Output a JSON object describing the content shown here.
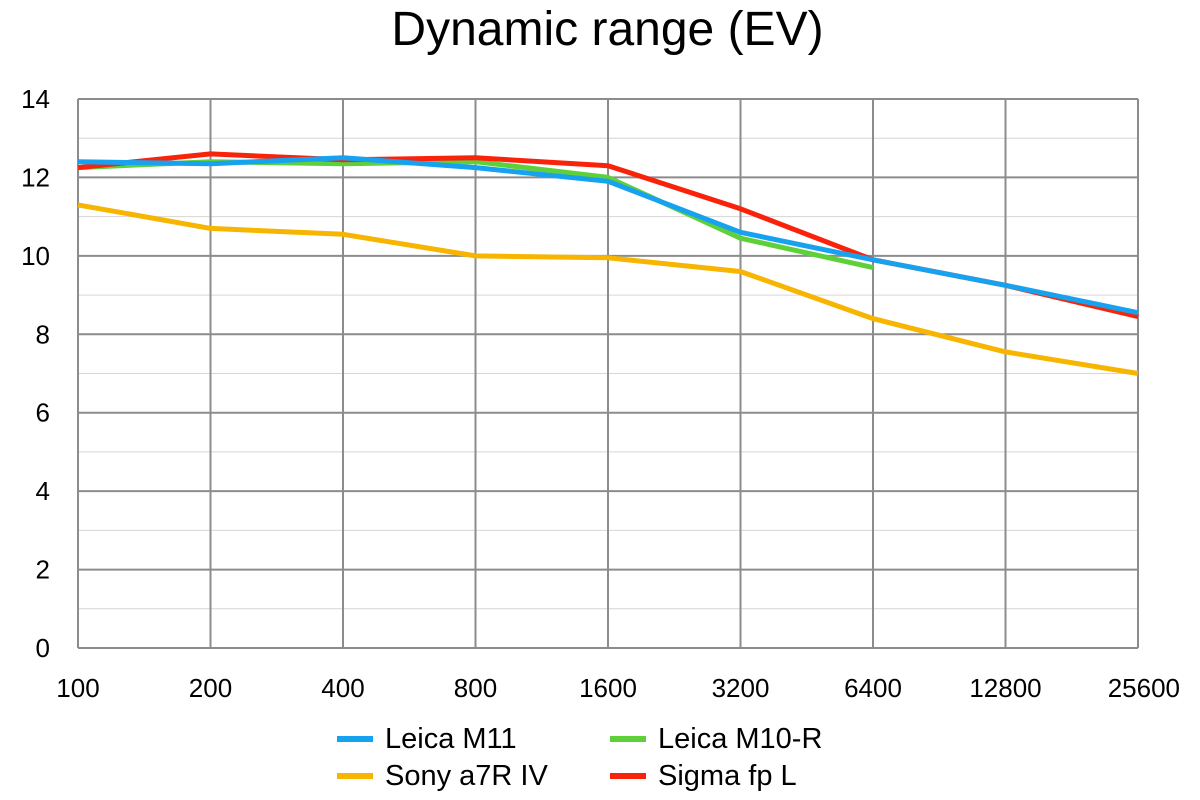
{
  "chart_data": {
    "type": "line",
    "title": "Dynamic range (EV)",
    "xlabel": "",
    "ylabel": "",
    "x_scale": "categorical",
    "categories": [
      "100",
      "200",
      "400",
      "800",
      "1600",
      "3200",
      "6400",
      "12800",
      "25600"
    ],
    "ylim": [
      0,
      14
    ],
    "yticks": [
      0,
      2,
      4,
      6,
      8,
      10,
      12,
      14
    ],
    "grid": true,
    "legend_position": "bottom",
    "series": [
      {
        "name": "Leica M11",
        "color": "#17a2f0",
        "values": [
          12.4,
          12.35,
          12.5,
          12.25,
          11.9,
          10.6,
          9.9,
          9.25,
          8.55
        ]
      },
      {
        "name": "Leica M10-R",
        "color": "#5ed039",
        "values": [
          12.25,
          12.4,
          12.35,
          12.4,
          12.0,
          10.45,
          9.7,
          null,
          null
        ]
      },
      {
        "name": "Sony a7R IV",
        "color": "#f7b500",
        "values": [
          11.3,
          10.7,
          10.55,
          10.0,
          9.95,
          9.6,
          8.4,
          7.55,
          7.0
        ]
      },
      {
        "name": "Sigma fp L",
        "color": "#f9230c",
        "values": [
          12.25,
          12.6,
          12.45,
          12.5,
          12.3,
          11.2,
          9.9,
          9.25,
          8.45
        ]
      }
    ]
  }
}
